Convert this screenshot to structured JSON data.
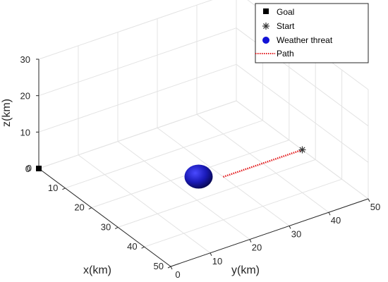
{
  "chart_data": {
    "type": "scatter",
    "dimensions": "3d",
    "xlabel": "x(km)",
    "ylabel": "y(km)",
    "zlabel": "z(km)",
    "xlim": [
      0,
      50
    ],
    "ylim": [
      0,
      50
    ],
    "zlim": [
      0,
      30
    ],
    "xticks": [
      "0",
      "10",
      "20",
      "30",
      "40",
      "50"
    ],
    "yticks": [
      "0",
      "10",
      "20",
      "30",
      "40",
      "50"
    ],
    "zticks": [
      "0",
      "10",
      "20",
      "30"
    ],
    "grid": true,
    "legend_position": "top-right",
    "goal": {
      "label": "Goal",
      "x": 0,
      "y": 0,
      "z": 0,
      "marker": "square",
      "color": "#000000"
    },
    "start": {
      "label": "Start",
      "x": 25,
      "y": 50,
      "z": 0,
      "marker": "asterisk",
      "color": "#333333"
    },
    "weather_threat": {
      "label": "Weather threat",
      "x": 25,
      "y": 25,
      "z": 0,
      "marker": "sphere",
      "color": "#1a1aa8"
    },
    "path": {
      "label": "Path",
      "color": "#e31a1c",
      "style": "dotted",
      "points": [
        {
          "x": 25,
          "y": 50,
          "z": 0
        },
        {
          "x": 25,
          "y": 45,
          "z": 0
        },
        {
          "x": 25,
          "y": 40,
          "z": 0
        },
        {
          "x": 25,
          "y": 35,
          "z": 0
        },
        {
          "x": 25,
          "y": 30,
          "z": 0
        }
      ]
    }
  }
}
